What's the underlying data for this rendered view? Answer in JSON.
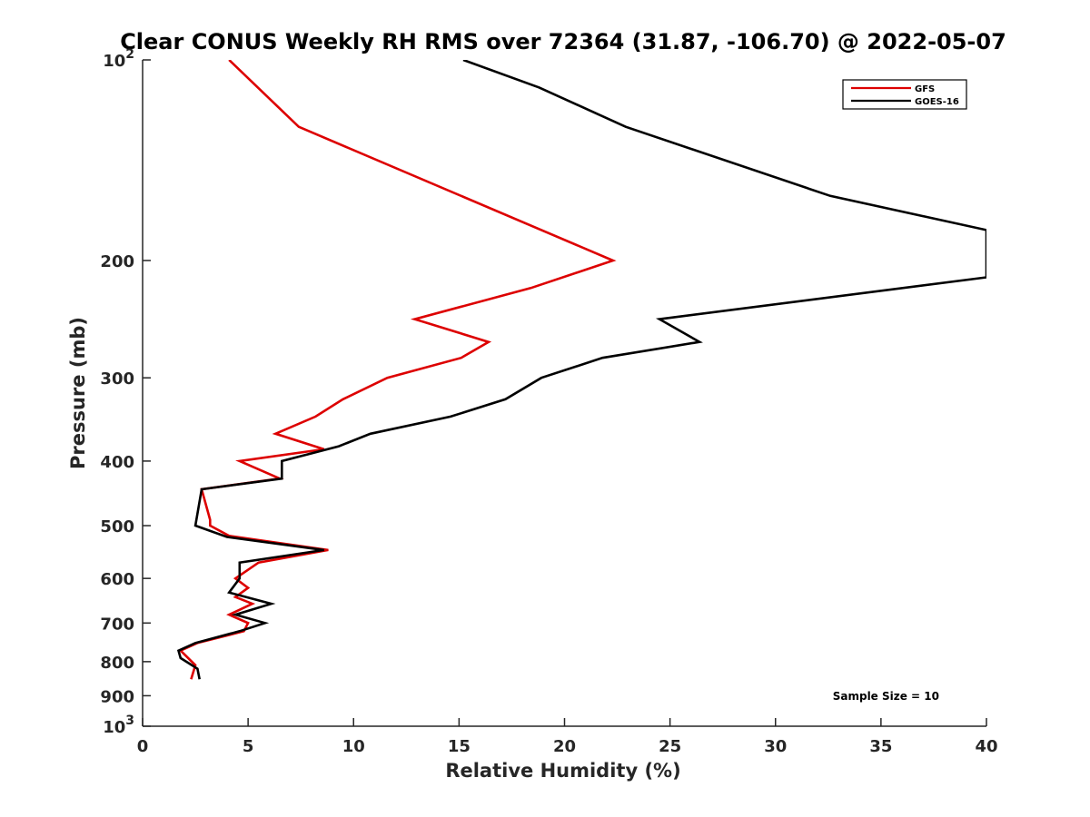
{
  "chart_data": {
    "type": "line",
    "title": "Clear CONUS Weekly RH RMS over 72364 (31.87, -106.70) @ 2022-05-07",
    "xlabel": "Relative Humidity (%)",
    "ylabel": "Pressure (mb)",
    "xlim": [
      0,
      40
    ],
    "ylim": [
      100,
      1000
    ],
    "y_scale": "log",
    "y_reversed": true,
    "x_ticks": [
      {
        "value": 0,
        "label": "0"
      },
      {
        "value": 5,
        "label": "5"
      },
      {
        "value": 10,
        "label": "10"
      },
      {
        "value": 15,
        "label": "15"
      },
      {
        "value": 20,
        "label": "20"
      },
      {
        "value": 25,
        "label": "25"
      },
      {
        "value": 30,
        "label": "30"
      },
      {
        "value": 35,
        "label": "35"
      },
      {
        "value": 40,
        "label": "40"
      }
    ],
    "y_ticks": [
      {
        "value": 100,
        "label": "",
        "base": "10",
        "exp": "2"
      },
      {
        "value": 200,
        "label": "200"
      },
      {
        "value": 300,
        "label": "300"
      },
      {
        "value": 400,
        "label": "400"
      },
      {
        "value": 500,
        "label": "500"
      },
      {
        "value": 600,
        "label": "600"
      },
      {
        "value": 700,
        "label": "700"
      },
      {
        "value": 800,
        "label": "800"
      },
      {
        "value": 900,
        "label": "900"
      },
      {
        "value": 1000,
        "label": "",
        "base": "10",
        "exp": "3"
      }
    ],
    "grid": false,
    "legend_position": "top-right",
    "annotation": "Sample Size = 10",
    "series": [
      {
        "name": "GFS",
        "color": "#dd0000",
        "points": [
          [
            4.1,
            100
          ],
          [
            7.4,
            126
          ],
          [
            22.3,
            200
          ],
          [
            18.4,
            220
          ],
          [
            12.9,
            245
          ],
          [
            16.4,
            265
          ],
          [
            15.1,
            280
          ],
          [
            11.6,
            300
          ],
          [
            9.5,
            323
          ],
          [
            8.2,
            343
          ],
          [
            6.3,
            364
          ],
          [
            8.6,
            384
          ],
          [
            4.6,
            400
          ],
          [
            6.5,
            425
          ],
          [
            2.8,
            441
          ],
          [
            3.2,
            490
          ],
          [
            3.2,
            500
          ],
          [
            4.1,
            518
          ],
          [
            8.8,
            544
          ],
          [
            5.5,
            568
          ],
          [
            4.4,
            600
          ],
          [
            5.0,
            620
          ],
          [
            4.4,
            640
          ],
          [
            5.2,
            655
          ],
          [
            4.1,
            680
          ],
          [
            5.0,
            700
          ],
          [
            4.8,
            720
          ],
          [
            2.6,
            750
          ],
          [
            1.8,
            770
          ],
          [
            2.5,
            810
          ],
          [
            2.3,
            850
          ]
        ]
      },
      {
        "name": "GOES-16",
        "color": "#000000",
        "points": [
          [
            15.2,
            100
          ],
          [
            18.8,
            110
          ],
          [
            22.9,
            126
          ],
          [
            32.6,
            160
          ],
          [
            40,
            180
          ],
          [
            40,
            212
          ],
          [
            24.5,
            245
          ],
          [
            26.4,
            265
          ],
          [
            21.8,
            280
          ],
          [
            18.9,
            300
          ],
          [
            17.2,
            323
          ],
          [
            14.6,
            343
          ],
          [
            10.8,
            364
          ],
          [
            9.3,
            380
          ],
          [
            6.6,
            400
          ],
          [
            6.6,
            425
          ],
          [
            2.8,
            441
          ],
          [
            2.5,
            500
          ],
          [
            4.0,
            520
          ],
          [
            8.6,
            544
          ],
          [
            4.6,
            568
          ],
          [
            4.6,
            600
          ],
          [
            4.1,
            630
          ],
          [
            6.1,
            655
          ],
          [
            4.4,
            680
          ],
          [
            5.8,
            700
          ],
          [
            4.6,
            720
          ],
          [
            2.5,
            750
          ],
          [
            1.7,
            770
          ],
          [
            1.8,
            790
          ],
          [
            2.6,
            820
          ],
          [
            2.7,
            850
          ]
        ]
      }
    ]
  }
}
